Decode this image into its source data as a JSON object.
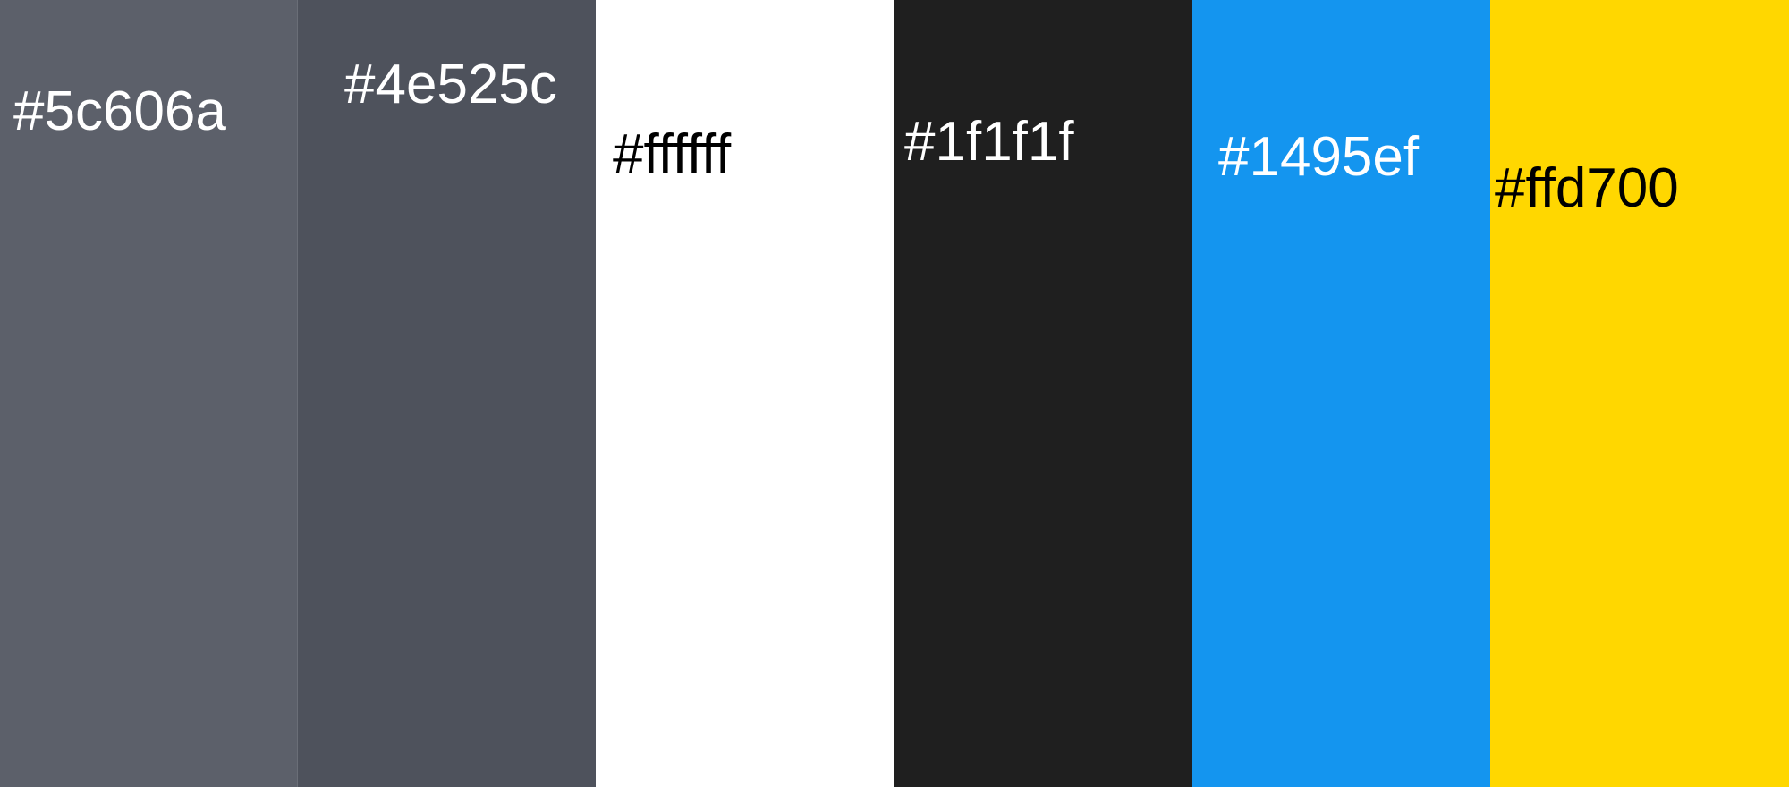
{
  "swatches": [
    {
      "hex": "#5c606a",
      "label": "#5c606a",
      "text_color": "#ffffff"
    },
    {
      "hex": "#4e525c",
      "label": "#4e525c",
      "text_color": "#ffffff"
    },
    {
      "hex": "#ffffff",
      "label": "#ffffff",
      "text_color": "#000000"
    },
    {
      "hex": "#1f1f1f",
      "label": "#1f1f1f",
      "text_color": "#ffffff"
    },
    {
      "hex": "#1495ef",
      "label": "#1495ef",
      "text_color": "#ffffff"
    },
    {
      "hex": "#ffd700",
      "label": "#ffd700",
      "text_color": "#000000"
    }
  ]
}
